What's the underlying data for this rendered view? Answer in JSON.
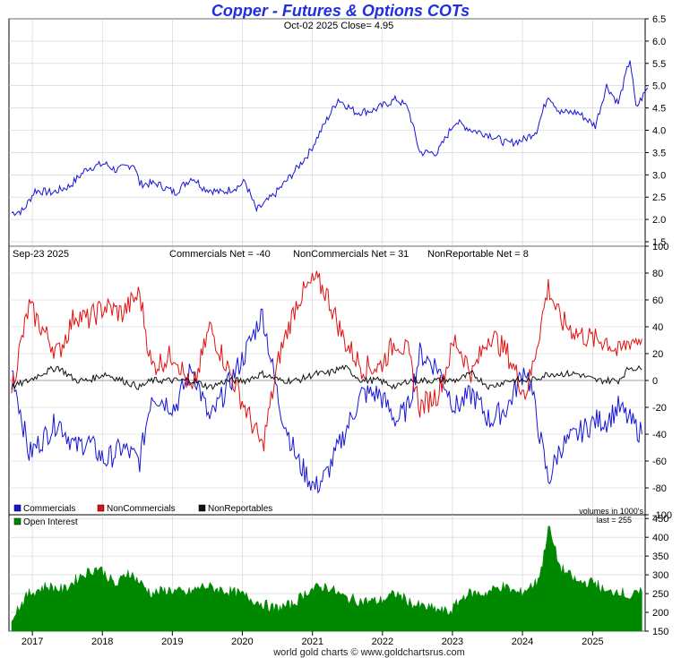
{
  "title": "Copper - Futures & Options COTs",
  "footer": "world gold charts © www.goldchartsrus.com",
  "colors": {
    "price": "#1515d6",
    "commercials": "#1515d6",
    "noncommercials": "#e01010",
    "nonreportables": "#111111",
    "open_interest": "#008800",
    "grid": "#cfcfcf"
  },
  "x_axis": {
    "type": "date",
    "range": [
      "2016-09-01",
      "2025-10-02"
    ],
    "tick_labels": [
      "2017",
      "2018",
      "2019",
      "2020",
      "2021",
      "2022",
      "2023",
      "2024",
      "2025"
    ]
  },
  "chart_data": [
    {
      "type": "line",
      "panel": "price",
      "header": "Oct-02  2025   Close= 4.95",
      "y_ticks": [
        "1.5",
        "2.0",
        "2.5",
        "3.0",
        "3.5",
        "4.0",
        "4.5",
        "5.0",
        "5.5",
        "6.0",
        "6.5"
      ],
      "ylim": [
        1.4,
        6.5
      ],
      "series": [
        {
          "x": [
            "2016-09",
            "2016-11",
            "2017-01",
            "2017-04",
            "2017-07",
            "2017-10",
            "2018-01",
            "2018-03",
            "2018-06",
            "2018-07",
            "2018-10",
            "2019-01",
            "2019-04",
            "2019-06",
            "2019-09",
            "2019-12",
            "2020-01",
            "2020-03",
            "2020-06",
            "2020-09",
            "2020-12",
            "2021-02",
            "2021-05",
            "2021-08",
            "2021-11",
            "2022-03",
            "2022-05",
            "2022-07",
            "2022-10",
            "2023-01",
            "2023-04",
            "2023-07",
            "2023-10",
            "2024-01",
            "2024-03",
            "2024-05",
            "2024-07",
            "2024-10",
            "2025-01",
            "2025-03",
            "2025-05",
            "2025-07",
            "2025-08",
            "2025-10"
          ],
          "values": [
            2.15,
            2.2,
            2.65,
            2.6,
            2.75,
            3.15,
            3.25,
            3.1,
            3.25,
            2.8,
            2.8,
            2.6,
            2.95,
            2.7,
            2.6,
            2.75,
            2.85,
            2.2,
            2.55,
            3.0,
            3.5,
            4.0,
            4.7,
            4.4,
            4.45,
            4.7,
            4.5,
            3.5,
            3.5,
            4.2,
            4.0,
            3.9,
            3.7,
            3.8,
            4.0,
            4.8,
            4.4,
            4.4,
            4.1,
            5.0,
            4.6,
            5.6,
            4.5,
            4.95
          ]
        }
      ]
    },
    {
      "type": "line",
      "panel": "net_positions",
      "header": {
        "date": "Sep-23  2025",
        "commercials": "Commercials Net = -40",
        "noncommercials": "NonCommercials Net = 31",
        "nonreportable": "NonReportable Net = 8"
      },
      "y_ticks": [
        "-100",
        "-80",
        "-60",
        "-40",
        "-20",
        "0",
        "20",
        "40",
        "60",
        "80",
        "100"
      ],
      "ylim": [
        -100,
        100
      ],
      "legend": [
        "Commercials",
        "NonCommercials",
        "NonReportables"
      ],
      "legend_position": "bottom-left",
      "note": "volumes in 1000's",
      "x": [
        "2016-09",
        "2016-12",
        "2017-02",
        "2017-05",
        "2017-08",
        "2017-10",
        "2018-01",
        "2018-04",
        "2018-07",
        "2018-09",
        "2019-01",
        "2019-04",
        "2019-07",
        "2019-10",
        "2020-01",
        "2020-04",
        "2020-07",
        "2020-10",
        "2021-01",
        "2021-03",
        "2021-06",
        "2021-09",
        "2021-12",
        "2022-03",
        "2022-05",
        "2022-07",
        "2022-10",
        "2023-01",
        "2023-04",
        "2023-07",
        "2023-10",
        "2024-01",
        "2024-02",
        "2024-05",
        "2024-07",
        "2024-10",
        "2025-01",
        "2025-03",
        "2025-05",
        "2025-07",
        "2025-09"
      ],
      "series": [
        {
          "name": "Commercials",
          "values": [
            10,
            -55,
            -45,
            -30,
            -50,
            -45,
            -60,
            -50,
            -60,
            -10,
            -20,
            10,
            -30,
            -5,
            20,
            50,
            -20,
            -60,
            -80,
            -70,
            -40,
            -10,
            -10,
            -30,
            -20,
            20,
            10,
            -20,
            -10,
            -30,
            -20,
            10,
            -5,
            -75,
            -50,
            -40,
            -30,
            -30,
            -20,
            -30,
            -40
          ]
        },
        {
          "name": "NonCommercials",
          "values": [
            -5,
            55,
            40,
            20,
            50,
            45,
            55,
            50,
            65,
            10,
            20,
            -10,
            40,
            10,
            -20,
            -50,
            20,
            60,
            75,
            65,
            30,
            10,
            10,
            30,
            20,
            -20,
            -10,
            30,
            5,
            35,
            20,
            -10,
            5,
            70,
            45,
            35,
            30,
            30,
            20,
            30,
            31
          ]
        },
        {
          "name": "NonReportables",
          "values": [
            -5,
            0,
            5,
            10,
            0,
            0,
            5,
            0,
            -5,
            0,
            0,
            0,
            -5,
            0,
            0,
            5,
            0,
            0,
            5,
            5,
            10,
            0,
            0,
            -5,
            0,
            0,
            0,
            0,
            5,
            -5,
            0,
            0,
            0,
            5,
            5,
            5,
            0,
            0,
            0,
            10,
            8
          ]
        }
      ]
    },
    {
      "type": "area",
      "panel": "open_interest",
      "legend": [
        "Open Interest"
      ],
      "legend_position": "top-left",
      "note": "last = 255",
      "y_ticks": [
        "150",
        "200",
        "250",
        "300",
        "350",
        "400",
        "450"
      ],
      "ylim": [
        150,
        460
      ],
      "series": [
        {
          "name": "Open Interest",
          "x": [
            "2016-09",
            "2016-12",
            "2017-03",
            "2017-06",
            "2017-09",
            "2017-12",
            "2018-03",
            "2018-05",
            "2018-07",
            "2018-09",
            "2018-12",
            "2019-03",
            "2019-06",
            "2019-09",
            "2019-12",
            "2020-03",
            "2020-06",
            "2020-09",
            "2020-12",
            "2021-03",
            "2021-06",
            "2021-09",
            "2021-12",
            "2022-03",
            "2022-06",
            "2022-09",
            "2022-12",
            "2023-03",
            "2023-06",
            "2023-09",
            "2023-12",
            "2024-03",
            "2024-04",
            "2024-05",
            "2024-07",
            "2024-10",
            "2025-01",
            "2025-03",
            "2025-05",
            "2025-07",
            "2025-09"
          ],
          "values": [
            190,
            250,
            270,
            260,
            300,
            320,
            270,
            310,
            280,
            250,
            260,
            250,
            270,
            260,
            250,
            230,
            210,
            220,
            260,
            270,
            240,
            230,
            230,
            250,
            220,
            210,
            200,
            250,
            250,
            270,
            250,
            280,
            330,
            430,
            320,
            280,
            280,
            250,
            260,
            240,
            255
          ]
        }
      ]
    }
  ]
}
